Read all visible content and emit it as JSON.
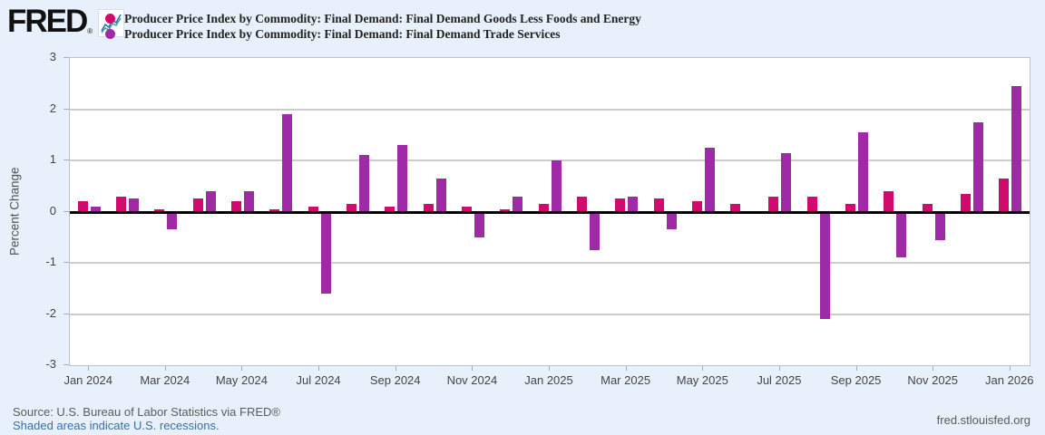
{
  "header": {
    "logo_text": "FRED",
    "registered_mark": "®",
    "legend": [
      {
        "label": "Producer Price Index by Commodity: Final Demand: Final Demand Goods Less Foods and Energy",
        "color": "#d10a6e"
      },
      {
        "label": "Producer Price Index by Commodity: Final Demand: Final Demand Trade Services",
        "color": "#9f2aa5"
      }
    ]
  },
  "chart_data": {
    "type": "bar",
    "title": "",
    "xlabel": "",
    "ylabel": "Percent Change",
    "ylim": [
      -3,
      3
    ],
    "yticks": [
      3,
      2,
      1,
      0,
      -1,
      -2,
      -3
    ],
    "grid": "horizontal",
    "zero_line": true,
    "legend_position": "top",
    "x_tick_every": 2,
    "categories": [
      "Jan 2024",
      "Feb 2024",
      "Mar 2024",
      "Apr 2024",
      "May 2024",
      "Jun 2024",
      "Jul 2024",
      "Aug 2024",
      "Sep 2024",
      "Oct 2024",
      "Nov 2024",
      "Dec 2024",
      "Jan 2025",
      "Feb 2025",
      "Mar 2025",
      "Apr 2025",
      "May 2025",
      "Jun 2025",
      "Jul 2025",
      "Aug 2025",
      "Sep 2025",
      "Oct 2025",
      "Nov 2025",
      "Dec 2025",
      "Jan 2026"
    ],
    "series": [
      {
        "name": "Producer Price Index by Commodity: Final Demand: Final Demand Goods Less Foods and Energy",
        "color": "#d10a6e",
        "values": [
          0.2,
          0.3,
          0.05,
          0.25,
          0.2,
          0.05,
          0.1,
          0.15,
          0.1,
          0.15,
          0.1,
          0.05,
          0.15,
          0.3,
          0.25,
          0.25,
          0.2,
          0.15,
          0.3,
          0.3,
          0.15,
          0.4,
          0.15,
          0.35,
          0.65
        ]
      },
      {
        "name": "Producer Price Index by Commodity: Final Demand: Final Demand Trade Services",
        "color": "#9f2aa5",
        "values": [
          0.1,
          0.25,
          -0.35,
          0.4,
          0.4,
          1.9,
          -1.6,
          1.1,
          1.3,
          0.65,
          -0.5,
          0.3,
          1.0,
          -0.75,
          0.3,
          -0.35,
          1.25,
          0.0,
          1.15,
          -2.1,
          1.55,
          -0.9,
          -0.55,
          1.75,
          2.45
        ]
      }
    ]
  },
  "footer": {
    "source": "Source: U.S. Bureau of Labor Statistics via FRED®",
    "recession_note": "Shaded areas indicate U.S. recessions.",
    "site": "fred.stlouisfed.org"
  }
}
